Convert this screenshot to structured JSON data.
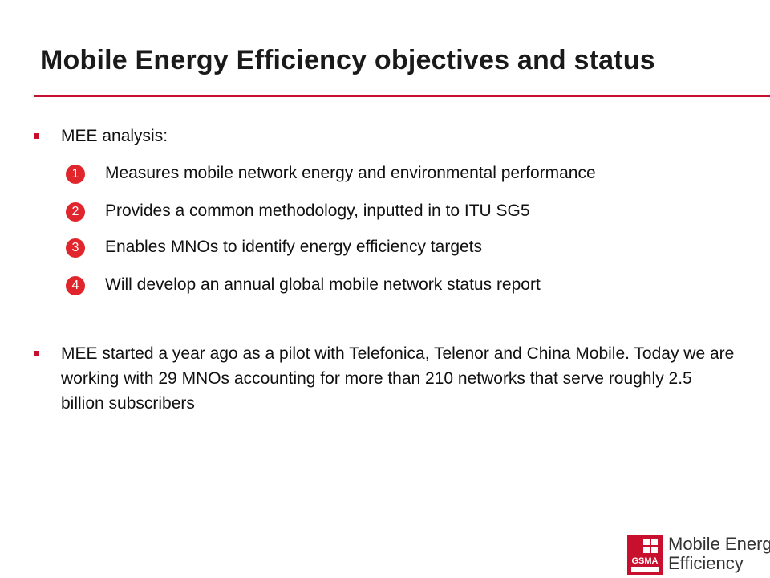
{
  "slide": {
    "title": "Mobile Energy Efficiency objectives and status",
    "colors": {
      "accent": "#c8102e",
      "badge": "#e0262c",
      "text": "#111111"
    }
  },
  "bullet1": {
    "text": "MEE analysis:",
    "items": [
      {
        "number": "1",
        "text": "Measures mobile network energy and environmental performance"
      },
      {
        "number": "2",
        "text": "Provides a common methodology, inputted in to ITU SG5"
      },
      {
        "number": "3",
        "text": "Enables MNOs to identify energy efficiency targets"
      },
      {
        "number": "4",
        "text": "Will develop an annual global mobile network status report"
      }
    ]
  },
  "bullet2": {
    "text": "MEE started a year ago as a pilot with Telefonica, Telenor and China Mobile. Today we are working with 29 MNOs accounting for more than 210 networks that serve roughly 2.5 billion subscribers"
  },
  "logo": {
    "brand": "GSMA",
    "line1": "Mobile Energy",
    "line2": "Efficiency"
  }
}
